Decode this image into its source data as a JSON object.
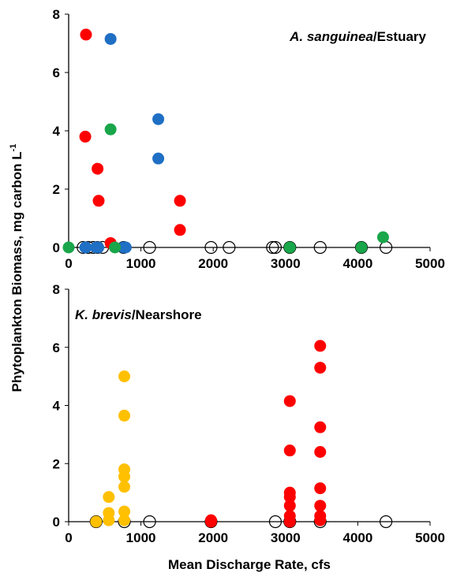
{
  "axis_labels": {
    "x": "Mean Discharge Rate, cfs",
    "y": "Phytoplankton Biomass, mg carbon L",
    "y_sup": "-1"
  },
  "chart_data": [
    {
      "type": "scatter",
      "title_italic": "A. sanguinea",
      "title_rest": "/Estuary",
      "xlim": [
        0,
        5000
      ],
      "xticks": [
        0,
        1000,
        2000,
        3000,
        4000,
        5000
      ],
      "ylim": [
        0,
        8
      ],
      "yticks": [
        0,
        2,
        4,
        6,
        8
      ],
      "series": [
        {
          "color": "#000000",
          "filled": false,
          "x": [
            200,
            270,
            340,
            400,
            470,
            760,
            1120,
            1970,
            2220,
            2820,
            2860,
            3060,
            3480,
            4050,
            4390
          ],
          "values": [
            0,
            0,
            0,
            0,
            0,
            0,
            0,
            0,
            0,
            0,
            0,
            0,
            0,
            0,
            0
          ]
        },
        {
          "color": "#ff0000",
          "filled": true,
          "x": [
            240,
            230,
            400,
            415,
            580,
            1540,
            1540
          ],
          "values": [
            7.3,
            3.8,
            2.7,
            1.6,
            0.15,
            1.6,
            0.6
          ]
        },
        {
          "color": "#1f6fc4",
          "filled": true,
          "x": [
            580,
            1240,
            1240,
            230,
            240,
            380,
            410,
            760,
            790
          ],
          "values": [
            7.15,
            4.4,
            3.05,
            0,
            0,
            0,
            0,
            0,
            0
          ]
        },
        {
          "color": "#1aa64a",
          "filled": true,
          "x": [
            580,
            4350,
            0,
            640,
            3060,
            4050
          ],
          "values": [
            4.05,
            0.35,
            0,
            0,
            0,
            0
          ]
        }
      ]
    },
    {
      "type": "scatter",
      "title_italic": "K. brevis",
      "title_rest": "/Nearshore",
      "xlim": [
        0,
        5000
      ],
      "xticks": [
        0,
        1000,
        2000,
        3000,
        4000,
        5000
      ],
      "ylim": [
        0,
        8
      ],
      "yticks": [
        0,
        2,
        4,
        6,
        8
      ],
      "series": [
        {
          "color": "#000000",
          "filled": false,
          "x": [
            380,
            770,
            1120,
            1970,
            2860,
            3060,
            3480,
            4390
          ],
          "values": [
            0,
            0,
            0,
            0,
            0,
            0,
            0,
            0
          ]
        },
        {
          "color": "#ffc000",
          "filled": true,
          "x": [
            770,
            770,
            770,
            770,
            770,
            770,
            770,
            555,
            555,
            555,
            380
          ],
          "values": [
            5.0,
            3.65,
            1.8,
            1.55,
            1.2,
            0.35,
            0.05,
            0.85,
            0.3,
            0.05,
            0
          ]
        },
        {
          "color": "#ff0000",
          "filled": true,
          "x": [
            1970,
            1970,
            3060,
            3060,
            3060,
            3060,
            3060,
            3060,
            3060,
            3480,
            3480,
            3480,
            3480,
            3480,
            3480,
            3480,
            3480
          ],
          "values": [
            0.05,
            0,
            4.15,
            2.45,
            1.0,
            0.85,
            0.55,
            0.2,
            0,
            6.05,
            5.3,
            3.25,
            2.4,
            1.15,
            0.55,
            0.2,
            0.05
          ]
        }
      ]
    }
  ]
}
